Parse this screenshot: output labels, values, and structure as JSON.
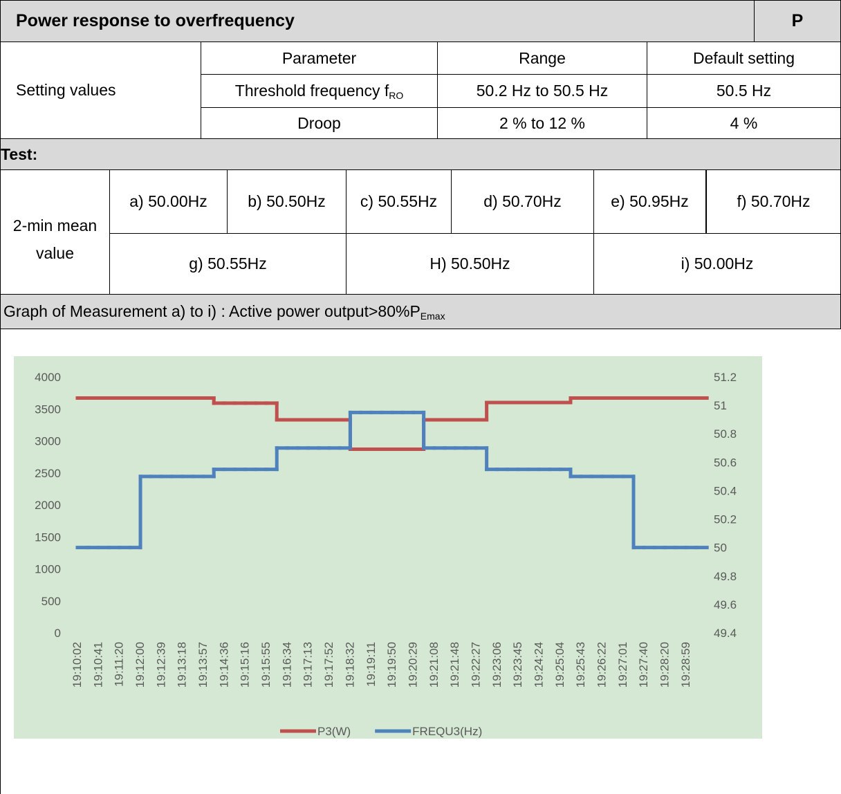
{
  "header": {
    "title": "Power response to overfrequency",
    "clause": "P"
  },
  "settings": {
    "label": "Setting values",
    "columns": [
      "Parameter",
      "Range",
      "Default setting"
    ],
    "rows": [
      {
        "parameter": "Threshold frequency f",
        "parameter_sub": "RO",
        "range": "50.2 Hz to 50.5 Hz",
        "default": "50.5 Hz"
      },
      {
        "parameter": "Droop",
        "range": "2 % to 12 %",
        "default": "4 %"
      }
    ]
  },
  "test": {
    "title": "Test:",
    "row_label": "2-min mean value",
    "steps": [
      "a) 50.00Hz",
      "b) 50.50Hz",
      "c) 50.55Hz",
      "d) 50.70Hz",
      "e) 50.95Hz",
      "f) 50.70Hz",
      "g) 50.55Hz",
      "H) 50.50Hz",
      "i) 50.00Hz"
    ]
  },
  "graph": {
    "caption": "Graph of Measurement a) to i) : Active power output>80%P",
    "caption_sub": "Emax"
  },
  "chart_data": {
    "type": "line",
    "categories": [
      "19:10:02",
      null,
      "19:10:41",
      null,
      "19:11:20",
      null,
      "19:12:00",
      null,
      "19:12:39",
      null,
      "19:13:18",
      null,
      "19:13:57",
      null,
      "19:14:36",
      null,
      "19:15:16",
      null,
      "19:15:55",
      null,
      "19:16:34",
      null,
      "19:17:13",
      null,
      "19:17:52",
      null,
      "19:18:32",
      null,
      "19:19:11",
      null,
      "19:19:50",
      null,
      "19:20:29",
      null,
      "19:21:08",
      null,
      "19:21:48",
      null,
      "19:22:27",
      null,
      "19:23:06",
      null,
      "19:23:45",
      null,
      "19:24:24",
      null,
      "19:25:04",
      null,
      "19:25:43",
      null,
      "19:26:22",
      null,
      "19:27:01",
      null,
      "19:27:40",
      null,
      "19:28:20",
      null,
      "19:28:59",
      null
    ],
    "series": [
      {
        "name": "P3(W)",
        "color": "#c0504d",
        "values": [
          3670,
          3670,
          3670,
          3670,
          3670,
          3670,
          3670,
          3670,
          3670,
          3670,
          3670,
          3670,
          3670,
          3590,
          3590,
          3590,
          3590,
          3590,
          3590,
          3330,
          3330,
          3330,
          3330,
          3330,
          3330,
          3330,
          2870,
          2870,
          2870,
          2870,
          2870,
          2870,
          2870,
          3330,
          3330,
          3330,
          3330,
          3330,
          3330,
          3600,
          3600,
          3600,
          3600,
          3600,
          3600,
          3600,
          3600,
          3670,
          3670,
          3670,
          3670,
          3670,
          3670,
          3670,
          3670,
          3670,
          3670,
          3670,
          3670,
          3670
        ]
      },
      {
        "name": "FREQU3(Hz)",
        "color": "#4f81bd",
        "axis": "y2",
        "values": [
          50,
          50,
          50,
          50,
          50,
          50,
          50.5,
          50.5,
          50.5,
          50.5,
          50.5,
          50.5,
          50.5,
          50.55,
          50.55,
          50.55,
          50.55,
          50.55,
          50.55,
          50.7,
          50.7,
          50.7,
          50.7,
          50.7,
          50.7,
          50.7,
          50.95,
          50.95,
          50.95,
          50.95,
          50.95,
          50.95,
          50.95,
          50.7,
          50.7,
          50.7,
          50.7,
          50.7,
          50.7,
          50.55,
          50.55,
          50.55,
          50.55,
          50.55,
          50.55,
          50.55,
          50.55,
          50.5,
          50.5,
          50.5,
          50.5,
          50.5,
          50.5,
          50,
          50,
          50,
          50,
          50,
          50,
          50
        ]
      }
    ],
    "ylim": [
      0,
      4000
    ],
    "yticks": [
      0,
      500,
      1000,
      1500,
      2000,
      2500,
      3000,
      3500,
      4000
    ],
    "y2lim": [
      49.4,
      51.2
    ],
    "y2ticks": [
      49.4,
      49.6,
      49.8,
      50,
      50.2,
      50.4,
      50.6,
      50.8,
      51,
      51.2
    ],
    "background": "#d5e8d4",
    "legend": "bottom",
    "grid": false
  }
}
